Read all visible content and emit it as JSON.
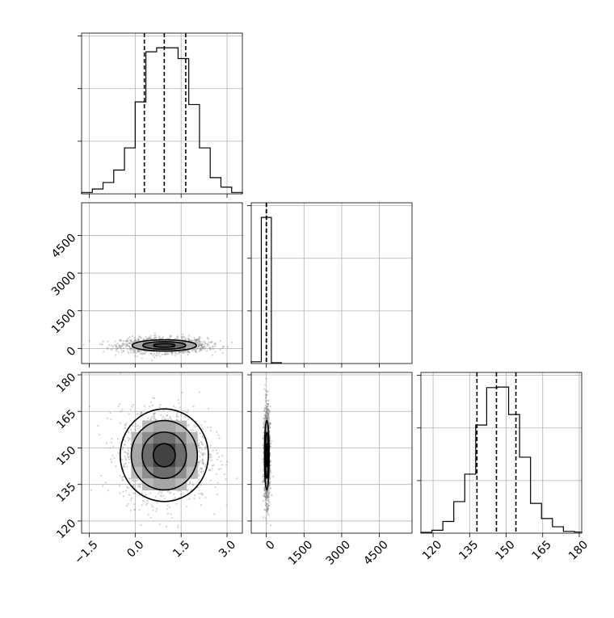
{
  "chart_data": {
    "type": "corner",
    "grid": true,
    "colors": {
      "line": "#000000",
      "grid": "#b0b0b0",
      "points": "#7f7f7f",
      "background": "#ffffff"
    },
    "parameters": [
      {
        "id": "p0",
        "range": [
          -1.75,
          3.5
        ],
        "ticks": [
          -1.5,
          0.0,
          1.5,
          3.0
        ],
        "tick_labels": [
          "−1.5",
          "0.0",
          "1.5",
          "3.0"
        ]
      },
      {
        "id": "p1",
        "range": [
          -600,
          5800
        ],
        "ticks": [
          0,
          1500,
          3000,
          4500
        ],
        "tick_labels": [
          "0",
          "1500",
          "3000",
          "4500"
        ]
      },
      {
        "id": "p2",
        "range": [
          115,
          181
        ],
        "ticks": [
          120,
          135,
          150,
          165,
          180
        ],
        "tick_labels": [
          "120",
          "135",
          "150",
          "165",
          "180"
        ]
      }
    ],
    "marginals": [
      {
        "param": "p0",
        "bin_edges": [
          -1.75,
          -1.4,
          -1.05,
          -0.7,
          -0.35,
          0.0,
          0.35,
          0.7,
          1.05,
          1.4,
          1.75,
          2.1,
          2.45,
          2.8,
          3.15,
          3.5
        ],
        "counts": [
          5,
          18,
          42,
          88,
          170,
          340,
          525,
          540,
          540,
          500,
          330,
          170,
          60,
          25,
          5
        ],
        "quantiles": [
          0.3,
          0.95,
          1.65
        ]
      },
      {
        "param": "p1",
        "bin_edges": [
          -600,
          -200,
          200,
          600
        ],
        "counts": [
          12,
          1000,
          6
        ],
        "quantiles": [
          0,
          2,
          6
        ]
      },
      {
        "param": "p2",
        "bin_edges": [
          115,
          119.5,
          124,
          128.5,
          133,
          137.5,
          142,
          146.5,
          151,
          155.5,
          160,
          164.5,
          169,
          173.5,
          178,
          181
        ],
        "counts": [
          3,
          10,
          40,
          108,
          202,
          370,
          498,
          500,
          406,
          260,
          102,
          50,
          22,
          6,
          4
        ],
        "quantiles": [
          138,
          146,
          154
        ]
      }
    ],
    "joint": [
      {
        "x": "p0",
        "y": "p1",
        "center": [
          0.95,
          120
        ],
        "sigma": [
          0.7,
          150
        ],
        "levels": [
          0.5,
          1.0,
          1.5
        ]
      },
      {
        "x": "p0",
        "y": "p2",
        "center": [
          0.95,
          147
        ],
        "sigma": [
          0.72,
          9.5
        ],
        "levels": [
          0.5,
          1.0,
          1.5,
          2.0
        ]
      },
      {
        "x": "p1",
        "y": "p2",
        "center": [
          20,
          147
        ],
        "sigma": [
          60,
          9.5
        ],
        "levels": [
          0.5,
          1.0,
          1.5
        ]
      }
    ]
  }
}
